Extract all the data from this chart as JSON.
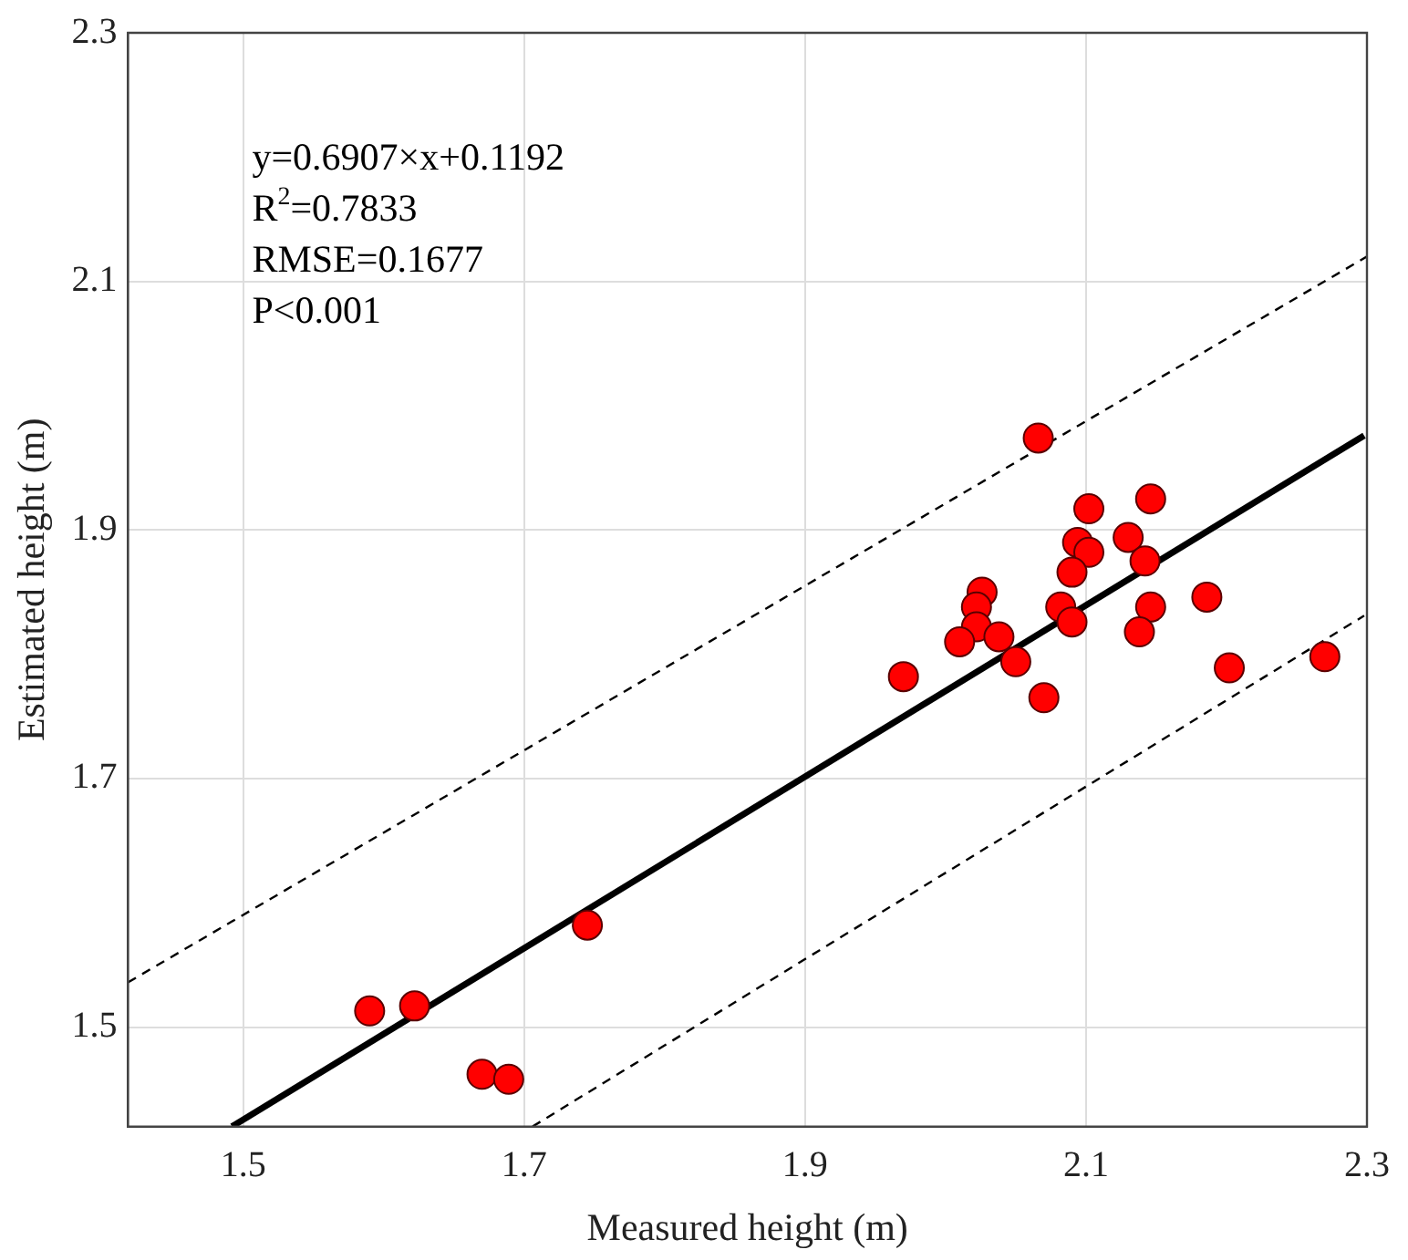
{
  "chart_data": {
    "type": "scatter",
    "xlabel": "Measured height (m)",
    "ylabel": "Estimated height (m)",
    "xlim": [
      1.418,
      2.3
    ],
    "ylim": [
      1.42,
      2.3
    ],
    "xticks": [
      1.5,
      1.7,
      1.9,
      2.1,
      2.3
    ],
    "yticks": [
      1.5,
      1.7,
      1.9,
      2.1,
      2.3
    ],
    "grid": true,
    "marker": "circle",
    "annotations": [
      "y=0.6907×x+0.1192",
      "R$^{2}$=0.7833",
      "RMSE=0.1677",
      "P<0.001"
    ],
    "series": [
      {
        "color": "#ff0000",
        "x": [
          1.59,
          1.622,
          1.67,
          1.689,
          1.745,
          2.066,
          2.146,
          2.102,
          2.094,
          2.102,
          2.13,
          2.142,
          2.09,
          2.026,
          2.022,
          2.082,
          2.146,
          2.186,
          2.022,
          2.09,
          2.01,
          2.038,
          2.138,
          2.05,
          1.97,
          2.202,
          2.27,
          2.07
        ],
        "values": [
          1.513,
          1.517,
          1.462,
          1.458,
          1.582,
          1.974,
          1.925,
          1.917,
          1.89,
          1.882,
          1.894,
          1.875,
          1.866,
          1.85,
          1.838,
          1.838,
          1.838,
          1.846,
          1.822,
          1.826,
          1.81,
          1.814,
          1.818,
          1.794,
          1.782,
          1.789,
          1.798,
          1.765
        ]
      },
      {
        "type": "line",
        "color": "#000000",
        "marker": "none",
        "line_style": "solid",
        "x": [
          1.492,
          2.298
        ],
        "values": [
          1.42,
          1.976
        ]
      },
      {
        "type": "line",
        "color": "#000000",
        "marker": "none",
        "line_style": "dashed",
        "x": [
          1.418,
          2.3
        ],
        "values": [
          1.536,
          2.12
        ]
      },
      {
        "type": "line",
        "color": "#000000",
        "marker": "none",
        "line_style": "dashed",
        "x": [
          1.706,
          2.298
        ],
        "values": [
          1.42,
          1.831
        ]
      }
    ]
  }
}
